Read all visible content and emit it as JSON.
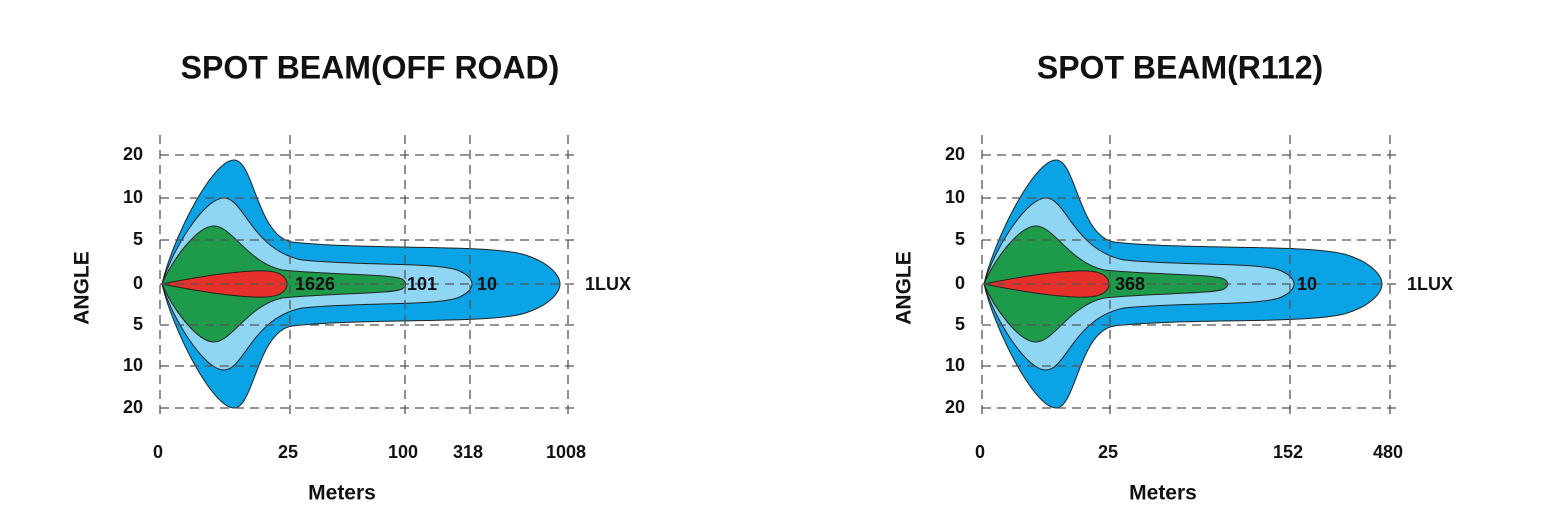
{
  "panels": [
    {
      "title": "SPOT  BEAM(OFF ROAD)",
      "y_label": "ANGLE",
      "y_ticks": [
        "20",
        "10",
        "5",
        "0",
        "5",
        "10",
        "20"
      ],
      "x_label": "Meters",
      "x_ticks": [
        "0",
        "25",
        "100",
        "318",
        "1008"
      ],
      "zone_labels": [
        "1626",
        "101",
        "10",
        "1LUX"
      ]
    },
    {
      "title": "SPOT  BEAM(R112)",
      "y_label": "ANGLE",
      "y_ticks": [
        "20",
        "10",
        "5",
        "0",
        "5",
        "10",
        "20"
      ],
      "x_label": "Meters",
      "x_ticks": [
        "0",
        "25",
        "152",
        "480"
      ],
      "zone_labels": [
        "368",
        "10",
        "1LUX"
      ]
    }
  ]
}
